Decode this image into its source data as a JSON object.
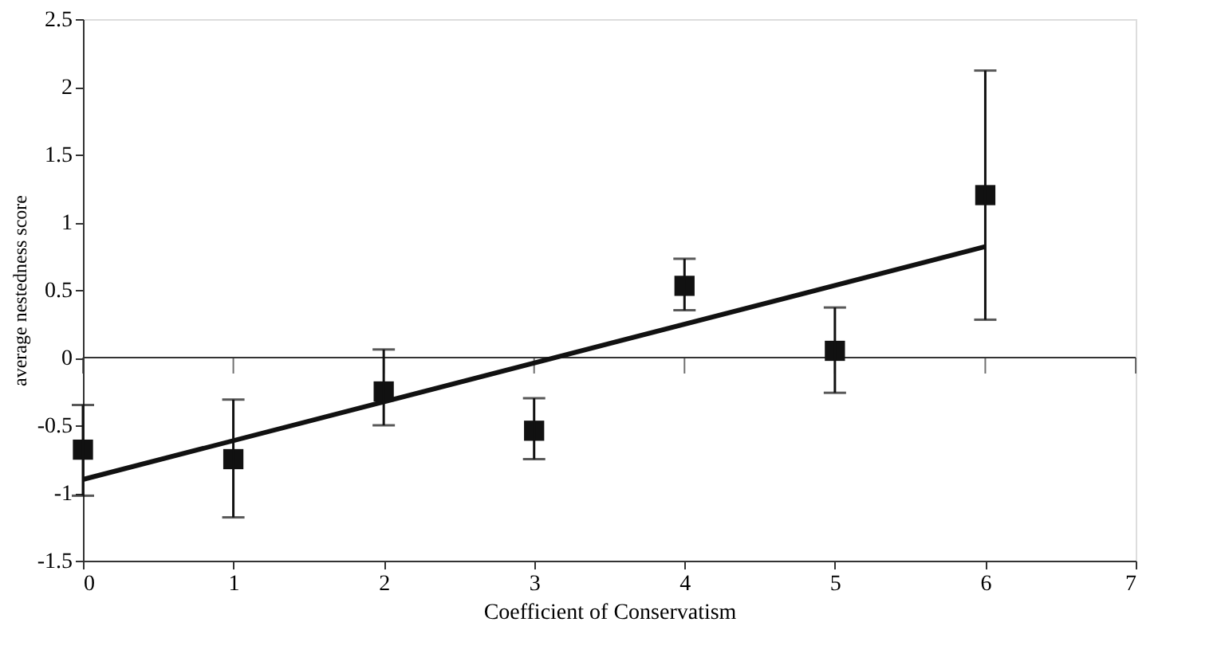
{
  "chart_data": {
    "type": "scatter",
    "xlabel": "Coefficient of Conservatism",
    "ylabel": "average nestedness score",
    "x": [
      0,
      1,
      2,
      3,
      4,
      5,
      6
    ],
    "series": [
      {
        "color": "#111111",
        "marker": "square",
        "values": [
          -0.68,
          -0.75,
          -0.25,
          -0.54,
          0.53,
          0.05,
          1.2
        ],
        "errors": [
          [
            -1.02,
            -0.35
          ],
          [
            -1.18,
            -0.31
          ],
          [
            -0.5,
            0.06
          ],
          [
            -0.75,
            -0.3
          ],
          [
            0.35,
            0.73
          ],
          [
            -0.26,
            0.37
          ],
          [
            0.28,
            2.12
          ]
        ]
      },
      {
        "type": "line",
        "color": "#111111",
        "x": [
          0,
          6
        ],
        "values": [
          -0.9,
          0.82
        ],
        "line_style": "solid",
        "marker": "none"
      }
    ],
    "xlim": [
      0,
      7
    ],
    "xticks": [
      0,
      1,
      2,
      3,
      4,
      5,
      6,
      7
    ],
    "ylim": [
      -1.5,
      2.5
    ],
    "yticks": [
      -1.5,
      -1,
      -0.5,
      0,
      0.5,
      1,
      1.5,
      2,
      2.5
    ],
    "ref_lines": [
      {
        "axis": "y",
        "value": 0,
        "color": "#333333",
        "line_style": "solid"
      }
    ],
    "grid": false
  }
}
